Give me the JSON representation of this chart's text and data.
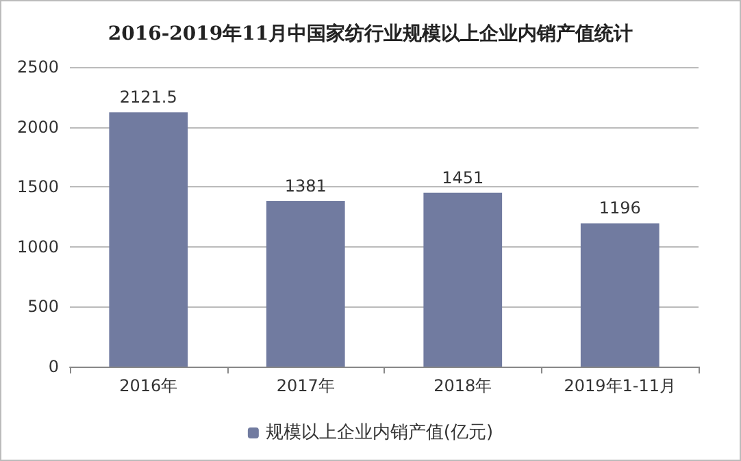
{
  "chart_data": {
    "type": "bar",
    "title": "2016-2019年11月中国家纺行业规模以上企业内销产值统计",
    "categories": [
      "2016年",
      "2017年",
      "2018年",
      "2019年1-11月"
    ],
    "series": [
      {
        "name": "规模以上企业内销产值(亿元)",
        "color": "#717ba0",
        "values": [
          2121.5,
          1381,
          1451,
          1196
        ]
      }
    ],
    "ylim": [
      0,
      2500
    ],
    "yticks": [
      0,
      500,
      1000,
      1500,
      2000,
      2500
    ],
    "grid": "y",
    "legend": "bottom",
    "data_labels": true
  }
}
